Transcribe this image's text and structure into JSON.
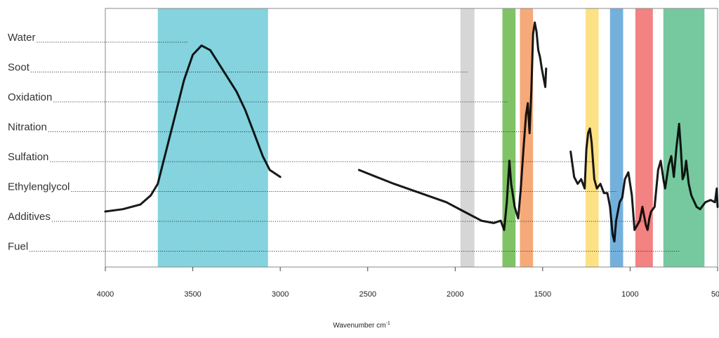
{
  "chart_data": {
    "type": "line",
    "xlabel": "Wavenumber cm",
    "xlabel_superscript": "-1",
    "x_reversed": true,
    "xlim": [
      4000,
      500
    ],
    "x_ticks": [
      4000,
      3500,
      3000,
      2500,
      2000,
      1500,
      1000,
      500
    ],
    "x_tick_labels": [
      "4000",
      "3500",
      "3000",
      "2500",
      "2000",
      "1500",
      "1000",
      "500"
    ],
    "y_axis_visible": false,
    "grid": false,
    "regions": [
      {
        "name": "water-region",
        "from": 3700,
        "to": 3070,
        "color": "#6ecbd8"
      },
      {
        "name": "soot-region",
        "from": 1970,
        "to": 1890,
        "color": "#cfcfcf"
      },
      {
        "name": "oxidation-region",
        "from": 1730,
        "to": 1655,
        "color": "#6ab84c"
      },
      {
        "name": "nitration-region",
        "from": 1630,
        "to": 1555,
        "color": "#f59a62"
      },
      {
        "name": "sulfation-region",
        "from": 1255,
        "to": 1180,
        "color": "#fddc70"
      },
      {
        "name": "ethylenglycol-region",
        "from": 1115,
        "to": 1040,
        "color": "#5aa3d6"
      },
      {
        "name": "additives-region",
        "from": 970,
        "to": 870,
        "color": "#f16c6c"
      },
      {
        "name": "fuel-region",
        "from": 810,
        "to": 575,
        "color": "#5ebf8d"
      }
    ],
    "annotations": [
      {
        "label": "Water",
        "line_to_x": 3530
      },
      {
        "label": "Soot",
        "line_to_x": 1930
      },
      {
        "label": "Oxidation",
        "line_to_x": 1700
      },
      {
        "label": "Nitration",
        "line_to_x": 1600
      },
      {
        "label": "Sulfation",
        "line_to_x": 1215
      },
      {
        "label": "Ethylenglycol",
        "line_to_x": 1075
      },
      {
        "label": "Additives",
        "line_to_x": 920
      },
      {
        "label": "Fuel",
        "line_to_x": 720
      }
    ],
    "series": [
      {
        "segments": [
          [
            [
              4000,
              0.18
            ],
            [
              3900,
              0.19
            ],
            [
              3800,
              0.21
            ],
            [
              3740,
              0.25
            ],
            [
              3700,
              0.3
            ],
            [
              3650,
              0.45
            ],
            [
              3600,
              0.6
            ],
            [
              3550,
              0.75
            ],
            [
              3500,
              0.86
            ],
            [
              3450,
              0.9
            ],
            [
              3400,
              0.88
            ],
            [
              3350,
              0.82
            ],
            [
              3300,
              0.76
            ],
            [
              3250,
              0.7
            ],
            [
              3200,
              0.62
            ],
            [
              3150,
              0.52
            ],
            [
              3100,
              0.42
            ],
            [
              3060,
              0.36
            ],
            [
              3000,
              0.33
            ]
          ],
          [
            [
              2550,
              0.36
            ],
            [
              2450,
              0.33
            ],
            [
              2350,
              0.3
            ],
            [
              2200,
              0.26
            ],
            [
              2050,
              0.22
            ],
            [
              1950,
              0.18
            ],
            [
              1850,
              0.14
            ],
            [
              1780,
              0.13
            ],
            [
              1740,
              0.14
            ],
            [
              1720,
              0.1
            ],
            [
              1705,
              0.22
            ],
            [
              1690,
              0.4
            ],
            [
              1680,
              0.3
            ],
            [
              1660,
              0.2
            ],
            [
              1640,
              0.15
            ],
            [
              1625,
              0.28
            ],
            [
              1610,
              0.45
            ],
            [
              1595,
              0.6
            ],
            [
              1585,
              0.65
            ],
            [
              1575,
              0.52
            ],
            [
              1565,
              0.7
            ],
            [
              1555,
              0.95
            ],
            [
              1545,
              1.0
            ],
            [
              1535,
              0.96
            ],
            [
              1525,
              0.88
            ],
            [
              1515,
              0.85
            ],
            [
              1505,
              0.8
            ],
            [
              1495,
              0.76
            ],
            [
              1485,
              0.72
            ],
            [
              1480,
              0.8
            ]
          ],
          [
            [
              1340,
              0.44
            ],
            [
              1320,
              0.33
            ],
            [
              1300,
              0.3
            ],
            [
              1280,
              0.32
            ],
            [
              1260,
              0.28
            ],
            [
              1250,
              0.45
            ],
            [
              1240,
              0.52
            ],
            [
              1230,
              0.54
            ],
            [
              1220,
              0.48
            ],
            [
              1205,
              0.32
            ],
            [
              1190,
              0.28
            ],
            [
              1170,
              0.3
            ],
            [
              1150,
              0.26
            ],
            [
              1130,
              0.26
            ],
            [
              1115,
              0.2
            ],
            [
              1100,
              0.08
            ],
            [
              1090,
              0.05
            ],
            [
              1080,
              0.14
            ],
            [
              1070,
              0.18
            ],
            [
              1060,
              0.22
            ],
            [
              1045,
              0.24
            ],
            [
              1030,
              0.32
            ],
            [
              1010,
              0.35
            ],
            [
              990,
              0.25
            ],
            [
              975,
              0.1
            ],
            [
              960,
              0.12
            ],
            [
              945,
              0.14
            ],
            [
              930,
              0.2
            ],
            [
              920,
              0.16
            ],
            [
              910,
              0.12
            ],
            [
              900,
              0.1
            ],
            [
              890,
              0.15
            ],
            [
              880,
              0.18
            ],
            [
              860,
              0.2
            ],
            [
              840,
              0.36
            ],
            [
              825,
              0.4
            ],
            [
              810,
              0.32
            ],
            [
              800,
              0.28
            ],
            [
              780,
              0.38
            ],
            [
              765,
              0.42
            ],
            [
              750,
              0.33
            ],
            [
              735,
              0.46
            ],
            [
              720,
              0.56
            ],
            [
              710,
              0.45
            ],
            [
              700,
              0.32
            ],
            [
              690,
              0.34
            ],
            [
              680,
              0.4
            ],
            [
              665,
              0.3
            ],
            [
              650,
              0.25
            ],
            [
              620,
              0.2
            ],
            [
              600,
              0.19
            ],
            [
              570,
              0.22
            ],
            [
              540,
              0.23
            ],
            [
              515,
              0.22
            ],
            [
              505,
              0.28
            ],
            [
              500,
              0.2
            ]
          ]
        ]
      }
    ]
  }
}
